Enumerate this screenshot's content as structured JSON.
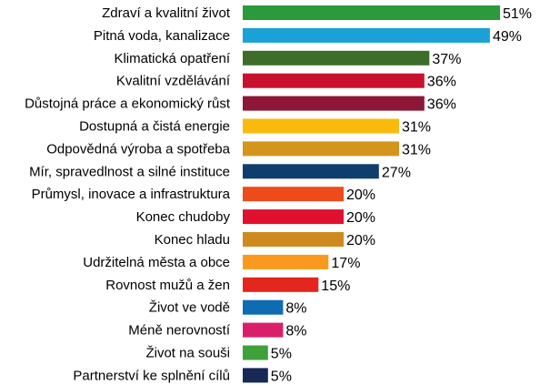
{
  "chart_data": {
    "type": "bar",
    "orientation": "horizontal",
    "title": "",
    "xlabel": "",
    "ylabel": "",
    "value_suffix": "%",
    "xlim": [
      0,
      51
    ],
    "grid": false,
    "legend": "none",
    "categories": [
      "Zdraví a kvalitní život",
      "Pitná voda, kanalizace",
      "Klimatická opatření",
      "Kvalitní vzdělávání",
      "Důstojná práce a ekonomický růst",
      "Dostupná a čistá energie",
      "Odpovědná výroba a spotřeba",
      "Mír, spravedlnost a silné instituce",
      "Průmysl, inovace a infrastruktura",
      "Konec chudoby",
      "Konec hladu",
      "Udržitelná města a obce",
      "Rovnost mužů a žen",
      "Život ve vodě",
      "Méně nerovností",
      "Život na souši",
      "Partnerství ke splnění cílů"
    ],
    "values": [
      51,
      49,
      37,
      36,
      36,
      31,
      31,
      27,
      20,
      20,
      20,
      17,
      15,
      8,
      8,
      5,
      5
    ],
    "value_labels": [
      "51%",
      "49%",
      "37%",
      "36%",
      "36%",
      "31%",
      "31%",
      "27%",
      "20%",
      "20%",
      "20%",
      "17%",
      "15%",
      "8%",
      "8%",
      "5%",
      "5%"
    ],
    "colors": [
      "#2b9a3c",
      "#1aa1d8",
      "#3d6e29",
      "#c8112e",
      "#8e1637",
      "#f9ba0e",
      "#d4951c",
      "#0f3e6d",
      "#ee4a1a",
      "#e0112e",
      "#cf8a1f",
      "#f99a1f",
      "#e3271e",
      "#0f6cb3",
      "#da1f6a",
      "#3fa13a",
      "#172a55"
    ]
  }
}
